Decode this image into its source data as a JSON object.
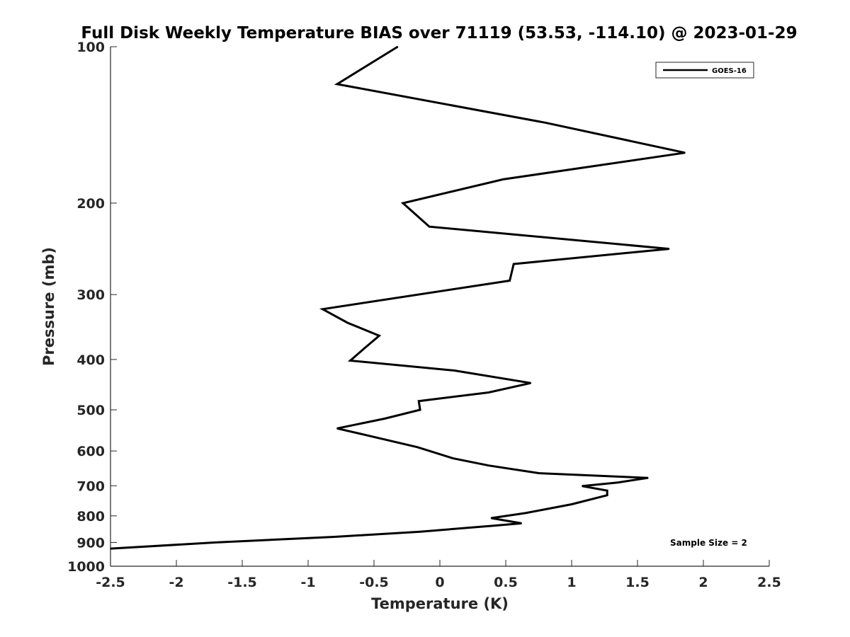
{
  "chart_data": {
    "type": "line",
    "title": "Full Disk Weekly Temperature BIAS over 71119 (53.53, -114.10) @ 2023-01-29",
    "xlabel": "Temperature (K)",
    "ylabel": "Pressure (mb)",
    "xlim": [
      -2.5,
      2.5
    ],
    "ylim": [
      1000,
      100
    ],
    "y_scale": "log",
    "y_reversed": true,
    "grid": false,
    "legend_position": "top-right",
    "x_ticks": [
      -2.5,
      -2,
      -1.5,
      -1,
      -0.5,
      0,
      0.5,
      1,
      1.5,
      2,
      2.5
    ],
    "x_tick_labels": [
      "-2.5",
      "-2",
      "-1.5",
      "-1",
      "-0.5",
      "0",
      "0.5",
      "1",
      "1.5",
      "2",
      "2.5"
    ],
    "y_ticks": [
      100,
      200,
      300,
      400,
      500,
      600,
      700,
      800,
      900,
      1000
    ],
    "y_tick_labels": [
      "100",
      "200",
      "300",
      "400",
      "500",
      "600",
      "700",
      "800",
      "900",
      "1000"
    ],
    "series": [
      {
        "name": "GOES-16",
        "color": "#000000",
        "points": [
          {
            "x": -0.32,
            "p": 100
          },
          {
            "x": -0.78,
            "p": 118
          },
          {
            "x": 0.8,
            "p": 140
          },
          {
            "x": 1.86,
            "p": 160
          },
          {
            "x": 0.48,
            "p": 180
          },
          {
            "x": -0.28,
            "p": 200
          },
          {
            "x": -0.08,
            "p": 222
          },
          {
            "x": 1.74,
            "p": 245
          },
          {
            "x": 0.56,
            "p": 262
          },
          {
            "x": 0.53,
            "p": 282
          },
          {
            "x": -0.89,
            "p": 320
          },
          {
            "x": -0.7,
            "p": 340
          },
          {
            "x": -0.46,
            "p": 360
          },
          {
            "x": -0.57,
            "p": 380
          },
          {
            "x": -0.68,
            "p": 402
          },
          {
            "x": 0.11,
            "p": 420
          },
          {
            "x": 0.69,
            "p": 444
          },
          {
            "x": 0.37,
            "p": 463
          },
          {
            "x": -0.16,
            "p": 481
          },
          {
            "x": -0.15,
            "p": 500
          },
          {
            "x": -0.42,
            "p": 520
          },
          {
            "x": -0.78,
            "p": 543
          },
          {
            "x": -0.55,
            "p": 560
          },
          {
            "x": -0.17,
            "p": 590
          },
          {
            "x": 0.1,
            "p": 620
          },
          {
            "x": 0.37,
            "p": 640
          },
          {
            "x": 0.75,
            "p": 662
          },
          {
            "x": 1.58,
            "p": 676
          },
          {
            "x": 1.35,
            "p": 690
          },
          {
            "x": 1.08,
            "p": 701
          },
          {
            "x": 1.27,
            "p": 715
          },
          {
            "x": 1.27,
            "p": 730
          },
          {
            "x": 1.0,
            "p": 760
          },
          {
            "x": 0.65,
            "p": 790
          },
          {
            "x": 0.39,
            "p": 808
          },
          {
            "x": 0.62,
            "p": 827
          },
          {
            "x": 0.4,
            "p": 836
          },
          {
            "x": -0.15,
            "p": 858
          },
          {
            "x": -0.8,
            "p": 878
          },
          {
            "x": -1.7,
            "p": 900
          },
          {
            "x": -2.5,
            "p": 925
          }
        ]
      }
    ],
    "annotation": "Sample Size = 2"
  }
}
